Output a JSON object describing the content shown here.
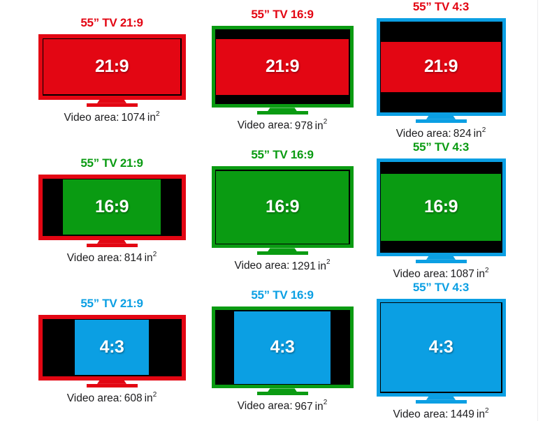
{
  "meta": {
    "description": "Comparison of video content aspect ratios shown on 55-inch TVs of different aspect ratios",
    "background": "#ffffff",
    "screen_black": "#000000",
    "caption_text_color": "#1c1c1e",
    "label_text_color": "#ffffff"
  },
  "ratio_colors": {
    "21:9": "#e30613",
    "16:9": "#0a9b12",
    "4:3": "#0b9fe3"
  },
  "ratios": {
    "21:9": 2.37,
    "16:9": 1.7778,
    "4:3": 1.3333
  },
  "cells": [
    {
      "title": "55” TV 21:9",
      "tv": "21:9",
      "content": "21:9",
      "label": "21:9",
      "cap": {
        "label": "Video area:",
        "value": "1074",
        "unit": "in",
        "sup": "2"
      }
    },
    {
      "title": "55” TV 16:9",
      "tv": "16:9",
      "content": "21:9",
      "label": "21:9",
      "cap": {
        "label": "Video area:",
        "value": "978",
        "unit": "in",
        "sup": "2"
      }
    },
    {
      "title": "55” TV 4:3",
      "tv": "4:3",
      "content": "21:9",
      "label": "21:9",
      "cap": {
        "label": "Video area:",
        "value": "824",
        "unit": "in",
        "sup": "2"
      }
    },
    {
      "title": "55” TV 21:9",
      "tv": "21:9",
      "content": "16:9",
      "label": "16:9",
      "cap": {
        "label": "Video area:",
        "value": "814",
        "unit": "in",
        "sup": "2"
      }
    },
    {
      "title": "55” TV 16:9",
      "tv": "16:9",
      "content": "16:9",
      "label": "16:9",
      "cap": {
        "label": "Video area:",
        "value": "1291",
        "unit": "in",
        "sup": "2"
      }
    },
    {
      "title": "55” TV 4:3",
      "tv": "4:3",
      "content": "16:9",
      "label": "16:9",
      "cap": {
        "label": "Video area:",
        "value": "1087",
        "unit": "in",
        "sup": "2"
      }
    },
    {
      "title": "55” TV 21:9",
      "tv": "21:9",
      "content": "4:3",
      "label": "4:3",
      "cap": {
        "label": "Video area:",
        "value": "608",
        "unit": "in",
        "sup": "2"
      }
    },
    {
      "title": "55” TV 16:9",
      "tv": "16:9",
      "content": "4:3",
      "label": "4:3",
      "cap": {
        "label": "Video area:",
        "value": "967",
        "unit": "in",
        "sup": "2"
      }
    },
    {
      "title": "55” TV 4:3",
      "tv": "4:3",
      "content": "4:3",
      "label": "4:3",
      "cap": {
        "label": "Video area:",
        "value": "1449",
        "unit": "in",
        "sup": "2"
      }
    }
  ]
}
